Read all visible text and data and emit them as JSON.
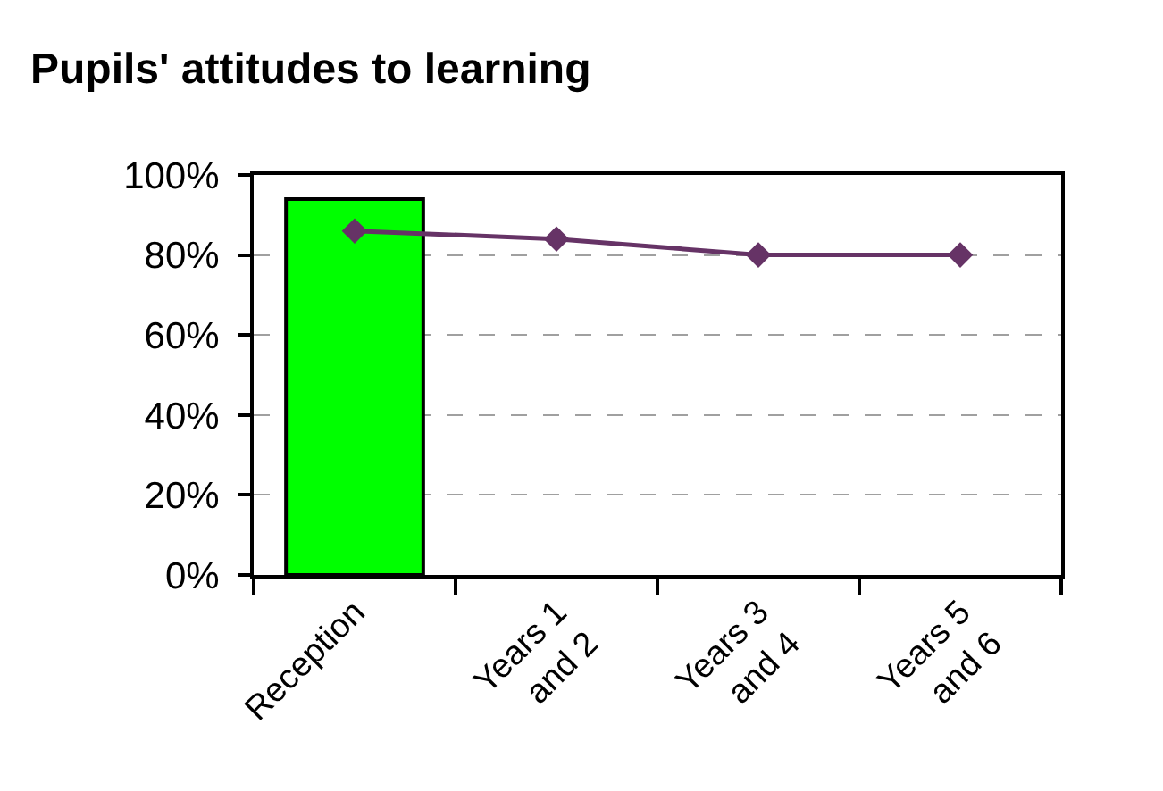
{
  "chart_data": {
    "type": "bar",
    "title": "Pupils' attitudes to learning",
    "categories": [
      "Reception",
      "Years 1\nand 2",
      "Years 3\nand 4",
      "Years 5\nand 6"
    ],
    "series": [
      {
        "color": "#00ff00",
        "values": [
          94,
          null,
          null,
          null
        ]
      },
      {
        "type": "line",
        "color": "#663366",
        "values": [
          86,
          84,
          80,
          80
        ],
        "marker": "diamond",
        "line_style": "solid"
      }
    ],
    "ylim": [
      0,
      100
    ],
    "yticks": [
      {
        "value": 0,
        "label": "0%"
      },
      {
        "value": 20,
        "label": "20%"
      },
      {
        "value": 40,
        "label": "40%"
      },
      {
        "value": 60,
        "label": "60%"
      },
      {
        "value": 80,
        "label": "80%"
      },
      {
        "value": 100,
        "label": "100%"
      }
    ],
    "grid": "y"
  }
}
